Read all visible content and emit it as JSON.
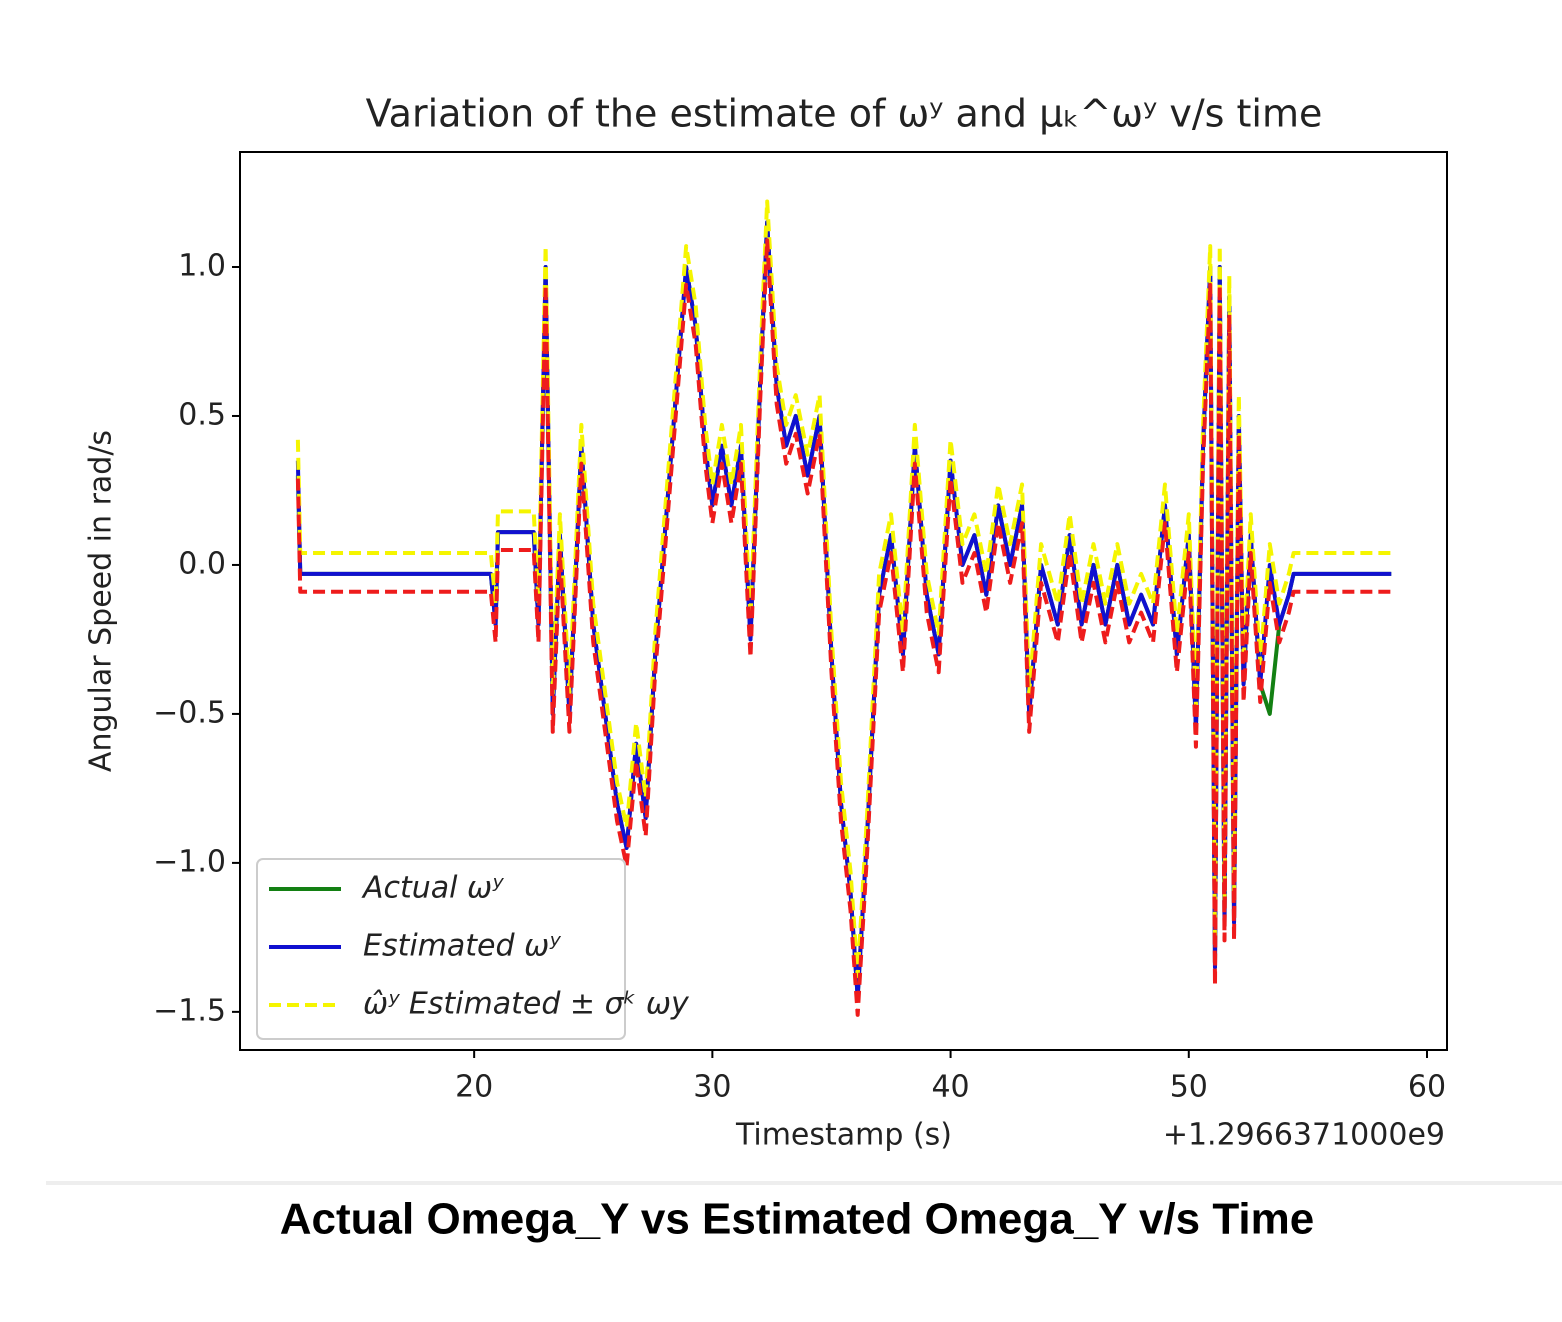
{
  "chart_data": {
    "type": "line",
    "title": "Variation of the estimate of ωʸ and μₖ^ωʸ v/s time",
    "x_label": "Timestamp (s)",
    "y_label": "Angular Speed in rad/s",
    "x_offset_label": "+1.2966371000e9",
    "caption": "Actual Omega_Y vs Estimated Omega_Y  v/s Time",
    "legend": "lower left",
    "xlim": [
      10.17,
      60.84
    ],
    "ylim": [
      -1.628,
      1.386
    ],
    "xticks": [
      20,
      30,
      40,
      50,
      60
    ],
    "yticks": [
      {
        "value": -1.5,
        "label": "−1.5"
      },
      {
        "value": -1.0,
        "label": "−1.0"
      },
      {
        "value": -0.5,
        "label": "−0.5"
      },
      {
        "value": 0.0,
        "label": "0.0"
      },
      {
        "value": 0.5,
        "label": "0.5"
      },
      {
        "value": 1.0,
        "label": "1.0"
      }
    ],
    "x": [
      12.6,
      12.7,
      15,
      18,
      20.7,
      20.9,
      21.0,
      22.5,
      22.7,
      23.0,
      23.3,
      23.6,
      24.0,
      24.5,
      25.0,
      25.5,
      26.0,
      26.4,
      26.8,
      27.2,
      27.6,
      28.0,
      28.5,
      28.9,
      29.3,
      29.7,
      30.0,
      30.4,
      30.8,
      31.2,
      31.6,
      32.0,
      32.3,
      32.7,
      33.1,
      33.5,
      34.0,
      34.5,
      35.0,
      35.4,
      35.8,
      36.1,
      36.5,
      37.0,
      37.5,
      38.0,
      38.5,
      39.0,
      39.5,
      40.0,
      40.5,
      41.0,
      41.5,
      42.0,
      42.5,
      43.0,
      43.3,
      43.8,
      44.5,
      45.0,
      45.5,
      46.0,
      46.5,
      47.0,
      47.5,
      48.0,
      48.5,
      49.0,
      49.5,
      50.0,
      50.3,
      50.6,
      50.9,
      51.1,
      51.3,
      51.5,
      51.7,
      51.9,
      52.1,
      52.3,
      52.6,
      53.0,
      53.4,
      53.8,
      54.2,
      54.4,
      58.5
    ],
    "series": [
      {
        "name": "Actual  ωʸ",
        "color": "#138013",
        "linestyle": "solid",
        "values": [
          0.3,
          -0.03,
          -0.03,
          -0.03,
          -0.03,
          -0.2,
          0.11,
          0.11,
          -0.2,
          1.0,
          -0.5,
          0.1,
          -0.5,
          0.4,
          -0.2,
          -0.5,
          -0.8,
          -0.95,
          -0.6,
          -0.85,
          -0.3,
          0.1,
          0.6,
          1.0,
          0.8,
          0.4,
          0.2,
          0.4,
          0.2,
          0.4,
          -0.25,
          0.6,
          1.15,
          0.6,
          0.4,
          0.5,
          0.3,
          0.5,
          -0.3,
          -0.8,
          -1.1,
          -1.45,
          -0.9,
          -0.1,
          0.1,
          -0.3,
          0.4,
          -0.1,
          -0.3,
          0.35,
          0.0,
          0.1,
          -0.1,
          0.2,
          0.0,
          0.2,
          -0.5,
          0.0,
          -0.2,
          0.1,
          -0.2,
          0.0,
          -0.2,
          0.0,
          -0.2,
          -0.1,
          -0.2,
          0.2,
          -0.3,
          0.1,
          -0.55,
          0.4,
          1.0,
          -1.35,
          1.0,
          -1.2,
          0.9,
          -1.2,
          0.5,
          -0.4,
          0.1,
          -0.4,
          -0.5,
          -0.2,
          -0.1,
          -0.03,
          -0.03
        ]
      },
      {
        "name": "Estimated ωʸ",
        "color": "#1010d0",
        "linestyle": "solid",
        "values": [
          0.35,
          -0.03,
          -0.03,
          -0.03,
          -0.03,
          -0.2,
          0.11,
          0.11,
          -0.2,
          1.0,
          -0.5,
          0.1,
          -0.5,
          0.4,
          -0.2,
          -0.5,
          -0.8,
          -0.95,
          -0.6,
          -0.85,
          -0.3,
          0.1,
          0.6,
          1.0,
          0.8,
          0.4,
          0.2,
          0.4,
          0.2,
          0.4,
          -0.25,
          0.6,
          1.15,
          0.6,
          0.4,
          0.5,
          0.3,
          0.5,
          -0.3,
          -0.8,
          -1.1,
          -1.45,
          -0.9,
          -0.1,
          0.1,
          -0.3,
          0.4,
          -0.1,
          -0.3,
          0.35,
          0.0,
          0.1,
          -0.1,
          0.2,
          0.0,
          0.2,
          -0.5,
          0.0,
          -0.2,
          0.1,
          -0.2,
          0.0,
          -0.2,
          0.0,
          -0.2,
          -0.1,
          -0.2,
          0.2,
          -0.3,
          0.1,
          -0.55,
          0.4,
          1.0,
          -1.35,
          1.0,
          -1.2,
          0.9,
          -1.2,
          0.5,
          -0.4,
          0.1,
          -0.4,
          0.0,
          -0.2,
          -0.1,
          -0.03,
          -0.03
        ]
      },
      {
        "name": "ω̂ʸ Estimated ± σᵏ ωy",
        "color": "#f5f500",
        "linestyle": "dashed",
        "values": [
          0.42,
          0.04,
          0.04,
          0.04,
          0.04,
          -0.13,
          0.18,
          0.18,
          -0.13,
          1.07,
          -0.43,
          0.17,
          -0.43,
          0.47,
          -0.13,
          -0.43,
          -0.73,
          -0.88,
          -0.53,
          -0.78,
          -0.23,
          0.17,
          0.67,
          1.07,
          0.87,
          0.47,
          0.27,
          0.47,
          0.27,
          0.47,
          -0.18,
          0.67,
          1.22,
          0.67,
          0.47,
          0.57,
          0.37,
          0.57,
          -0.23,
          -0.73,
          -1.03,
          -1.38,
          -0.83,
          -0.03,
          0.17,
          -0.23,
          0.47,
          -0.03,
          -0.23,
          0.42,
          0.07,
          0.17,
          -0.03,
          0.27,
          0.07,
          0.27,
          -0.43,
          0.07,
          -0.13,
          0.17,
          -0.13,
          0.07,
          -0.13,
          0.07,
          -0.13,
          -0.03,
          -0.13,
          0.27,
          -0.23,
          0.17,
          -0.48,
          0.47,
          1.07,
          -1.28,
          1.07,
          -1.13,
          0.97,
          -1.13,
          0.57,
          -0.33,
          0.17,
          -0.33,
          0.07,
          -0.13,
          -0.03,
          0.04,
          0.04
        ]
      },
      {
        "color": "#ee1c1c",
        "linestyle": "dashed",
        "values": [
          0.29,
          -0.09,
          -0.09,
          -0.09,
          -0.09,
          -0.26,
          0.05,
          0.05,
          -0.26,
          0.94,
          -0.56,
          0.04,
          -0.56,
          0.34,
          -0.26,
          -0.56,
          -0.86,
          -1.01,
          -0.66,
          -0.91,
          -0.36,
          0.04,
          0.54,
          0.94,
          0.74,
          0.34,
          0.14,
          0.34,
          0.14,
          0.34,
          -0.31,
          0.54,
          1.09,
          0.54,
          0.34,
          0.44,
          0.24,
          0.44,
          -0.36,
          -0.86,
          -1.16,
          -1.51,
          -0.96,
          -0.16,
          0.04,
          -0.36,
          0.34,
          -0.16,
          -0.36,
          0.29,
          -0.06,
          0.04,
          -0.16,
          0.14,
          -0.06,
          0.14,
          -0.56,
          -0.06,
          -0.26,
          0.04,
          -0.26,
          -0.06,
          -0.26,
          -0.06,
          -0.26,
          -0.16,
          -0.26,
          0.14,
          -0.36,
          0.04,
          -0.61,
          0.34,
          0.94,
          -1.41,
          0.94,
          -1.26,
          0.84,
          -1.26,
          0.44,
          -0.46,
          0.04,
          -0.46,
          -0.06,
          -0.26,
          -0.16,
          -0.09,
          -0.09
        ]
      }
    ]
  }
}
